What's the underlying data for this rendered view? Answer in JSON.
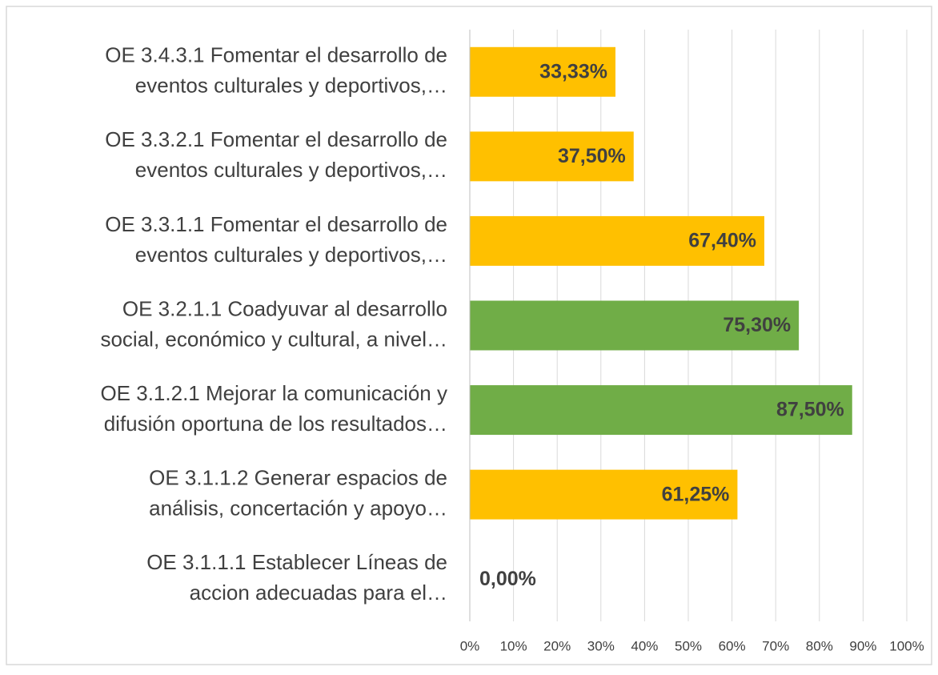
{
  "chart_data": {
    "type": "bar",
    "orientation": "horizontal",
    "categories": [
      [
        "OE 3.4.3.1 Fomentar el desarrollo de",
        "eventos culturales y deportivos,…"
      ],
      [
        "OE 3.3.2.1 Fomentar el desarrollo de",
        "eventos culturales y deportivos,…"
      ],
      [
        "OE 3.3.1.1 Fomentar el desarrollo de",
        "eventos culturales y deportivos,…"
      ],
      [
        "OE 3.2.1.1 Coadyuvar al desarrollo",
        "social, económico y cultural, a nivel…"
      ],
      [
        "OE 3.1.2.1 Mejorar la comunicación y",
        "difusión oportuna de los resultados…"
      ],
      [
        "OE 3.1.1.2 Generar espacios de",
        "análisis, concertación y apoyo…"
      ],
      [
        "OE 3.1.1.1 Establecer Líneas de",
        "accion adecuadas para el…"
      ]
    ],
    "values": [
      33.33,
      37.5,
      67.4,
      75.3,
      87.5,
      61.25,
      0
    ],
    "value_labels": [
      "33,33%",
      "37,50%",
      "67,40%",
      "75,30%",
      "87,50%",
      "61,25%",
      "0,00%"
    ],
    "colors": [
      "#ffc000",
      "#ffc000",
      "#ffc000",
      "#70ad47",
      "#70ad47",
      "#ffc000",
      "#ffc000"
    ],
    "xlim": [
      0,
      100
    ],
    "xticks": [
      {
        "value": 0,
        "label": "0%"
      },
      {
        "value": 10,
        "label": "10%"
      },
      {
        "value": 20,
        "label": "20%"
      },
      {
        "value": 30,
        "label": "30%"
      },
      {
        "value": 40,
        "label": "40%"
      },
      {
        "value": 50,
        "label": "50%"
      },
      {
        "value": 60,
        "label": "60%"
      },
      {
        "value": 70,
        "label": "70%"
      },
      {
        "value": 80,
        "label": "80%"
      },
      {
        "value": 90,
        "label": "90%"
      },
      {
        "value": 100,
        "label": "100%"
      }
    ],
    "grid": true
  }
}
